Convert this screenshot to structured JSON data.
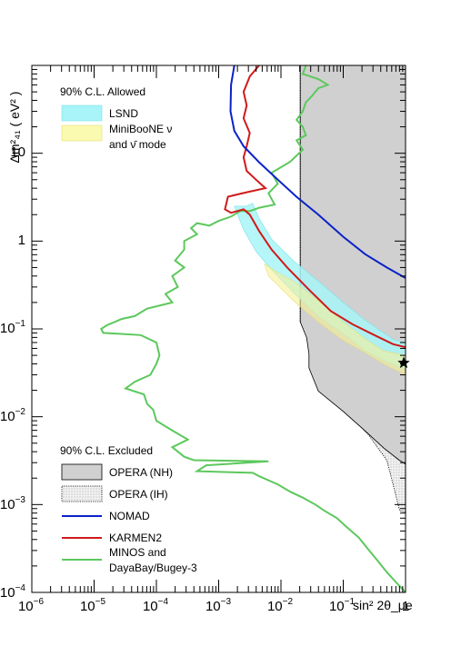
{
  "chart_data": {
    "type": "line",
    "xlabel": "sin² 2θ_μe",
    "ylabel": "Δm²₄₁ ( eV² )",
    "x_scale": "log",
    "y_scale": "log",
    "xlim": [
      1e-06,
      1
    ],
    "ylim": [
      0.0001,
      100
    ],
    "x_ticks": [
      {
        "base": "10",
        "exp": "−6"
      },
      {
        "base": "10",
        "exp": "−5"
      },
      {
        "base": "10",
        "exp": "−4"
      },
      {
        "base": "10",
        "exp": "−3"
      },
      {
        "base": "10",
        "exp": "−2"
      },
      {
        "base": "10",
        "exp": "−1"
      },
      {
        "base": "1",
        "exp": ""
      }
    ],
    "y_ticks": [
      {
        "base": "10",
        "exp": "−4"
      },
      {
        "base": "10",
        "exp": "−3"
      },
      {
        "base": "10",
        "exp": "−2"
      },
      {
        "base": "10",
        "exp": "−1"
      },
      {
        "base": "1",
        "exp": ""
      },
      {
        "base": "10",
        "exp": ""
      }
    ],
    "legend_allowed": {
      "header": "90% C.L. Allowed",
      "entries": [
        {
          "label": "LSND",
          "color": "#a8f4f8"
        },
        {
          "label": "MiniBooNE ν",
          "label2": "and ν̄ mode",
          "color": "#fafab0"
        }
      ]
    },
    "legend_excluded": {
      "header": "90% C.L. Excluded",
      "entries": [
        {
          "label": "OPERA (NH)",
          "color": "#d0d0d0"
        },
        {
          "label": "OPERA (IH)",
          "color": "#eeeeee"
        },
        {
          "label": "NOMAD",
          "color": "#0a22c8"
        },
        {
          "label": "KARMEN2",
          "color": "#d01a1a"
        },
        {
          "label": "MINOS and",
          "label2": "DayaBay/Bugey-3",
          "color": "#5cc85c"
        }
      ]
    },
    "series": [
      {
        "id": "opera_nh",
        "type": "area",
        "color": "#d0d0d0",
        "boundary": [
          [
            0.0204,
            100
          ],
          [
            0.0204,
            0.12
          ],
          [
            0.0258,
            0.08
          ],
          [
            0.0282,
            0.052
          ],
          [
            0.0282,
            0.036
          ],
          [
            0.0398,
            0.0196
          ],
          [
            0.1,
            0.0115
          ],
          [
            0.224,
            0.0069
          ],
          [
            0.447,
            0.0044
          ],
          [
            0.794,
            0.0032
          ],
          [
            1,
            0.0029
          ]
        ]
      },
      {
        "id": "opera_ih",
        "type": "area",
        "color": "#eeeeee",
        "boundary": [
          [
            0.0355,
            0.025
          ],
          [
            0.1,
            0.0123
          ],
          [
            0.251,
            0.0063
          ],
          [
            0.501,
            0.0032
          ],
          [
            0.631,
            0.0017
          ],
          [
            0.76,
            0.001
          ],
          [
            0.81,
            0.00085
          ],
          [
            1,
            0.00082
          ]
        ]
      },
      {
        "id": "lsnd",
        "type": "area",
        "color": "#a8f4f8",
        "boundary": [
          [
            0.00178,
            2.5
          ],
          [
            0.0025,
            1.35
          ],
          [
            0.004,
            0.76
          ],
          [
            0.0071,
            0.47
          ],
          [
            0.0158,
            0.26
          ],
          [
            0.0398,
            0.14
          ],
          [
            0.1,
            0.088
          ],
          [
            0.224,
            0.057
          ],
          [
            0.447,
            0.044
          ],
          [
            0.79,
            0.037
          ],
          [
            1,
            0.035
          ],
          [
            1,
            0.07
          ],
          [
            0.631,
            0.076
          ],
          [
            0.224,
            0.126
          ],
          [
            0.1,
            0.2
          ],
          [
            0.0398,
            0.35
          ],
          [
            0.0158,
            0.6
          ],
          [
            0.0071,
            1.05
          ],
          [
            0.0045,
            1.8
          ],
          [
            0.0035,
            2.7
          ],
          [
            0.0028,
            2.5
          ]
        ]
      },
      {
        "id": "miniboone",
        "type": "area",
        "color": "#fafab0",
        "boundary": [
          [
            0.0054,
            0.55
          ],
          [
            0.0063,
            0.4
          ],
          [
            0.0158,
            0.21
          ],
          [
            0.0398,
            0.12
          ],
          [
            0.1,
            0.074
          ],
          [
            0.224,
            0.054
          ],
          [
            0.447,
            0.04
          ],
          [
            1,
            0.03
          ],
          [
            1,
            0.05
          ],
          [
            0.447,
            0.056
          ],
          [
            0.224,
            0.077
          ],
          [
            0.1,
            0.12
          ],
          [
            0.0398,
            0.21
          ],
          [
            0.0158,
            0.35
          ],
          [
            0.0079,
            0.46
          ]
        ]
      },
      {
        "id": "nomad",
        "type": "line",
        "color": "#0a22c8",
        "points": [
          [
            0.00178,
            100
          ],
          [
            0.00158,
            60
          ],
          [
            0.00155,
            30
          ],
          [
            0.00178,
            18
          ],
          [
            0.00251,
            12
          ],
          [
            0.00447,
            7.9
          ],
          [
            0.00891,
            5
          ],
          [
            0.0177,
            3.2
          ],
          [
            0.0398,
            2
          ],
          [
            0.1,
            1.12
          ],
          [
            0.224,
            0.71
          ],
          [
            0.501,
            0.5
          ],
          [
            1,
            0.38
          ]
        ]
      },
      {
        "id": "karmen2",
        "type": "line",
        "color": "#d01a1a",
        "points": [
          [
            0.00447,
            100
          ],
          [
            0.00316,
            75
          ],
          [
            0.00251,
            50
          ],
          [
            0.00282,
            35
          ],
          [
            0.00251,
            25
          ],
          [
            0.00316,
            17
          ],
          [
            0.00282,
            12
          ],
          [
            0.00251,
            9
          ],
          [
            0.00282,
            6.3
          ],
          [
            0.00398,
            5
          ],
          [
            0.00562,
            4
          ],
          [
            0.00282,
            3.6
          ],
          [
            0.00141,
            3.2
          ],
          [
            0.00126,
            2.3
          ],
          [
            0.00158,
            2.1
          ],
          [
            0.00251,
            2.3
          ],
          [
            0.00316,
            2
          ],
          [
            0.00447,
            1.3
          ],
          [
            0.00708,
            0.8
          ],
          [
            0.0126,
            0.5
          ],
          [
            0.0282,
            0.28
          ],
          [
            0.0631,
            0.16
          ],
          [
            0.141,
            0.113
          ],
          [
            0.316,
            0.085
          ],
          [
            0.631,
            0.067
          ],
          [
            1,
            0.062
          ]
        ]
      },
      {
        "id": "minos_dayabay",
        "type": "line",
        "color": "#5cc85c",
        "points": [
          [
            0.0251,
            100
          ],
          [
            0.0224,
            80
          ],
          [
            0.0398,
            70
          ],
          [
            0.0562,
            60
          ],
          [
            0.0398,
            55
          ],
          [
            0.0316,
            45
          ],
          [
            0.0251,
            38
          ],
          [
            0.0224,
            30
          ],
          [
            0.0178,
            24
          ],
          [
            0.0224,
            20
          ],
          [
            0.0251,
            16
          ],
          [
            0.0178,
            14
          ],
          [
            0.0224,
            11
          ],
          [
            0.0141,
            8
          ],
          [
            0.0071,
            6
          ],
          [
            0.0089,
            4.5
          ],
          [
            0.0063,
            3.5
          ],
          [
            0.0079,
            2.6
          ],
          [
            0.0045,
            2.4
          ],
          [
            0.0032,
            2.2
          ],
          [
            0.00224,
            2.2
          ],
          [
            0.00158,
            1.9
          ],
          [
            0.001,
            1.7
          ],
          [
            0.00071,
            1.5
          ],
          [
            0.00045,
            1.6
          ],
          [
            0.00036,
            1.4
          ],
          [
            0.00045,
            1.2
          ],
          [
            0.00028,
            1.0
          ],
          [
            0.00028,
            0.8
          ],
          [
            0.0002,
            0.6
          ],
          [
            0.00028,
            0.5
          ],
          [
            0.00018,
            0.4
          ],
          [
            0.00022,
            0.3
          ],
          [
            0.00014,
            0.25
          ],
          [
            0.00018,
            0.2
          ],
          [
            7.1e-05,
            0.17
          ],
          [
            4.5e-05,
            0.14
          ],
          [
            2.8e-05,
            0.13
          ],
          [
            1.6e-05,
            0.11
          ],
          [
            1.3e-05,
            0.1
          ],
          [
            1.4e-05,
            0.09
          ],
          [
            5.6e-05,
            0.085
          ],
          [
            0.0001,
            0.07
          ],
          [
            0.000112,
            0.05
          ],
          [
            0.0001,
            0.04
          ],
          [
            8e-05,
            0.03
          ],
          [
            4.5e-05,
            0.025
          ],
          [
            3.2e-05,
            0.021
          ],
          [
            6.3e-05,
            0.018
          ],
          [
            7.1e-05,
            0.014
          ],
          [
            8.9e-05,
            0.012
          ],
          [
            0.0001,
            0.009
          ],
          [
            0.000178,
            0.007
          ],
          [
            0.00032,
            0.0055
          ],
          [
            0.00018,
            0.0045
          ],
          [
            0.00028,
            0.0035
          ],
          [
            0.0004,
            0.0032
          ],
          [
            0.0063,
            0.0031
          ],
          [
            0.00063,
            0.0028
          ],
          [
            0.00045,
            0.0024
          ],
          [
            0.0035,
            0.0023
          ],
          [
            0.0045,
            0.0021
          ],
          [
            0.0089,
            0.0017
          ],
          [
            0.0141,
            0.0014
          ],
          [
            0.0224,
            0.0012
          ],
          [
            0.0355,
            0.001
          ],
          [
            0.0501,
            0.00085
          ],
          [
            0.0794,
            0.0007
          ],
          [
            0.112,
            0.00056
          ],
          [
            0.178,
            0.00042
          ],
          [
            0.251,
            0.00031
          ],
          [
            0.355,
            0.00023
          ],
          [
            0.501,
            0.00017
          ],
          [
            0.708,
            0.00013
          ],
          [
            1,
            0.0001
          ]
        ]
      },
      {
        "id": "best_fit",
        "type": "marker",
        "color": "#000000",
        "point": [
          1,
          0.041
        ]
      }
    ]
  }
}
